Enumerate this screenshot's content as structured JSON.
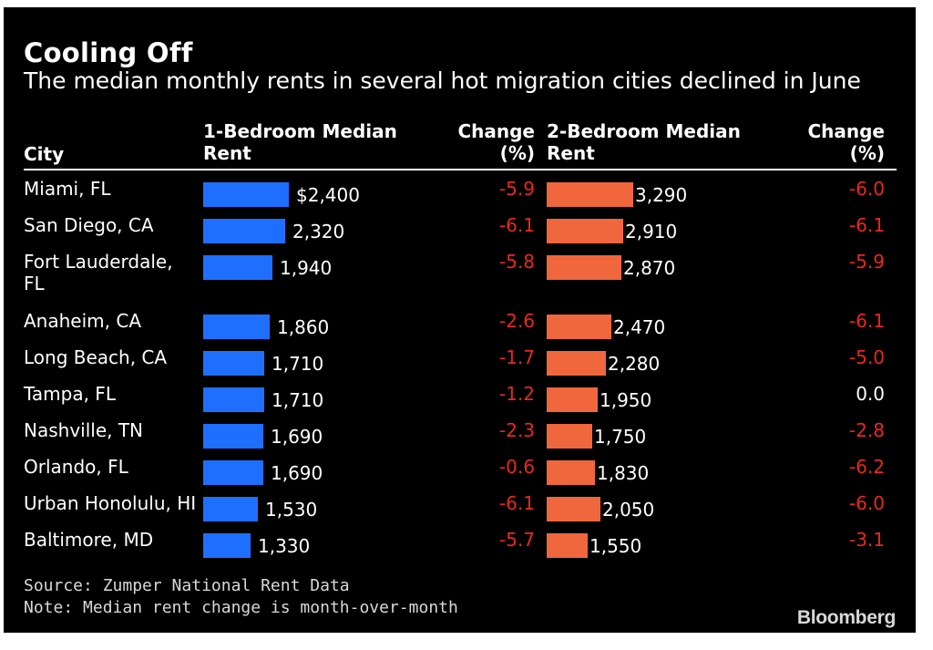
{
  "title": "Cooling Off",
  "subtitle": "The median monthly rents in several hot migration cities declined in June",
  "columns": {
    "city": "City",
    "rent1_line1": "1-Bedroom Median",
    "rent1_line2": "Rent",
    "change1_line1": "Change",
    "change1_line2": "(%)",
    "rent2_line1": "2-Bedroom Median",
    "rent2_line2": "Rent",
    "change2_line1": "Change",
    "change2_line2": "(%)"
  },
  "source": "Source: Zumper National Rent Data",
  "note": "Note: Median rent change is month-over-month",
  "brand": "Bloomberg",
  "colors": {
    "bar_1br": "#1f6fff",
    "bar_2br": "#f0663d",
    "negative": "#e8281e",
    "neutral": "#ffffff"
  },
  "chart_data": {
    "type": "table",
    "rows": [
      {
        "city": "Miami, FL",
        "rent1": 2400,
        "rent1_label": "$2,400",
        "change1": "-5.9",
        "rent2": 3290,
        "rent2_label": "3,290",
        "change2": "-6.0"
      },
      {
        "city": "San Diego, CA",
        "rent1": 2320,
        "rent1_label": "2,320",
        "change1": "-6.1",
        "rent2": 2910,
        "rent2_label": "2,910",
        "change2": "-6.1"
      },
      {
        "city": "Fort Lauderdale, FL",
        "rent1": 1940,
        "rent1_label": "1,940",
        "change1": "-5.8",
        "rent2": 2870,
        "rent2_label": "2,870",
        "change2": "-5.9"
      },
      {
        "city": "Anaheim, CA",
        "rent1": 1860,
        "rent1_label": "1,860",
        "change1": "-2.6",
        "rent2": 2470,
        "rent2_label": "2,470",
        "change2": "-6.1"
      },
      {
        "city": "Long Beach, CA",
        "rent1": 1710,
        "rent1_label": "1,710",
        "change1": "-1.7",
        "rent2": 2280,
        "rent2_label": "2,280",
        "change2": "-5.0"
      },
      {
        "city": "Tampa, FL",
        "rent1": 1710,
        "rent1_label": "1,710",
        "change1": "-1.2",
        "rent2": 1950,
        "rent2_label": "1,950",
        "change2": "0.0"
      },
      {
        "city": "Nashville, TN",
        "rent1": 1690,
        "rent1_label": "1,690",
        "change1": "-2.3",
        "rent2": 1750,
        "rent2_label": "1,750",
        "change2": "-2.8"
      },
      {
        "city": "Orlando, FL",
        "rent1": 1690,
        "rent1_label": "1,690",
        "change1": "-0.6",
        "rent2": 1830,
        "rent2_label": "1,830",
        "change2": "-6.2"
      },
      {
        "city": "Urban Honolulu, HI",
        "rent1": 1530,
        "rent1_label": "1,530",
        "change1": "-6.1",
        "rent2": 2050,
        "rent2_label": "2,050",
        "change2": "-6.0"
      },
      {
        "city": "Baltimore, MD",
        "rent1": 1330,
        "rent1_label": "1,330",
        "change1": "-5.7",
        "rent2": 1550,
        "rent2_label": "1,550",
        "change2": "-3.1"
      }
    ]
  }
}
